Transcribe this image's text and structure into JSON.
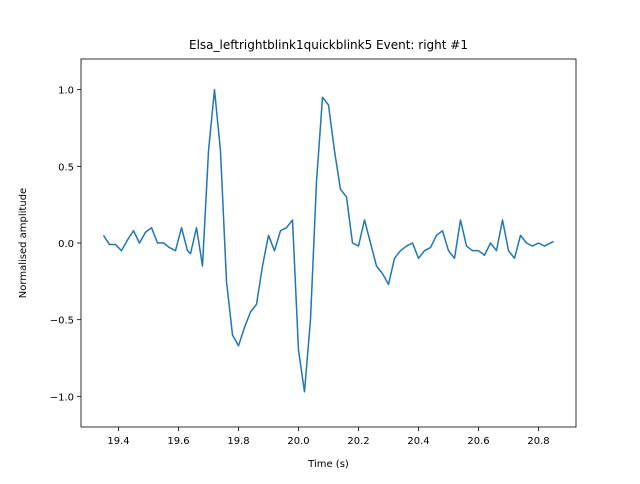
{
  "chart_data": {
    "type": "line",
    "title": "Elsa_leftrightblink1quickblink5 Event: right #1",
    "x_label": "Time (s)",
    "y_label": "Normalised amplitude",
    "x": [
      19.35,
      19.37,
      19.39,
      19.41,
      19.43,
      19.45,
      19.47,
      19.49,
      19.51,
      19.53,
      19.55,
      19.57,
      19.59,
      19.61,
      19.63,
      19.64,
      19.66,
      19.68,
      19.7,
      19.72,
      19.74,
      19.76,
      19.78,
      19.8,
      19.82,
      19.84,
      19.86,
      19.88,
      19.9,
      19.92,
      19.94,
      19.96,
      19.98,
      20.0,
      20.02,
      20.04,
      20.06,
      20.08,
      20.1,
      20.12,
      20.14,
      20.16,
      20.18,
      20.2,
      20.22,
      20.24,
      20.26,
      20.28,
      20.3,
      20.32,
      20.34,
      20.36,
      20.38,
      20.4,
      20.42,
      20.44,
      20.46,
      20.48,
      20.5,
      20.52,
      20.54,
      20.56,
      20.58,
      20.6,
      20.62,
      20.64,
      20.66,
      20.68,
      20.7,
      20.72,
      20.74,
      20.76,
      20.78,
      20.8,
      20.82,
      20.85
    ],
    "series": [
      {
        "name": "signal",
        "color": "#1f77b4",
        "values": [
          0.05,
          -0.01,
          -0.01,
          -0.05,
          0.02,
          0.08,
          0.0,
          0.07,
          0.1,
          0.0,
          0.0,
          -0.03,
          -0.05,
          0.1,
          -0.05,
          -0.07,
          0.1,
          -0.15,
          0.6,
          1.0,
          0.6,
          -0.25,
          -0.6,
          -0.67,
          -0.55,
          -0.45,
          -0.4,
          -0.15,
          0.05,
          -0.05,
          0.08,
          0.1,
          0.15,
          -0.7,
          -0.97,
          -0.5,
          0.4,
          0.95,
          0.9,
          0.6,
          0.35,
          0.3,
          0.0,
          -0.02,
          0.15,
          0.0,
          -0.15,
          -0.2,
          -0.27,
          -0.1,
          -0.05,
          -0.02,
          0.0,
          -0.1,
          -0.05,
          -0.03,
          0.05,
          0.08,
          -0.05,
          -0.1,
          0.15,
          -0.02,
          -0.05,
          -0.05,
          -0.08,
          0.0,
          -0.05,
          0.15,
          -0.05,
          -0.1,
          0.05,
          0.0,
          -0.02,
          0.0,
          -0.02,
          0.01
        ]
      }
    ],
    "xlim": [
      19.275,
      20.925
    ],
    "xticks": [
      19.4,
      19.6,
      19.8,
      {
        "value": 20,
        "label": "20.0"
      },
      20.2,
      20.4,
      20.6,
      20.8
    ],
    "ylim": [
      -1.2,
      1.2
    ],
    "yticks": [
      {
        "value": -1,
        "label": "−1.0"
      },
      {
        "value": -0.5,
        "label": "−0.5"
      },
      {
        "value": 0,
        "label": "0.0"
      },
      0.5,
      {
        "value": 1,
        "label": "1.0"
      }
    ]
  }
}
